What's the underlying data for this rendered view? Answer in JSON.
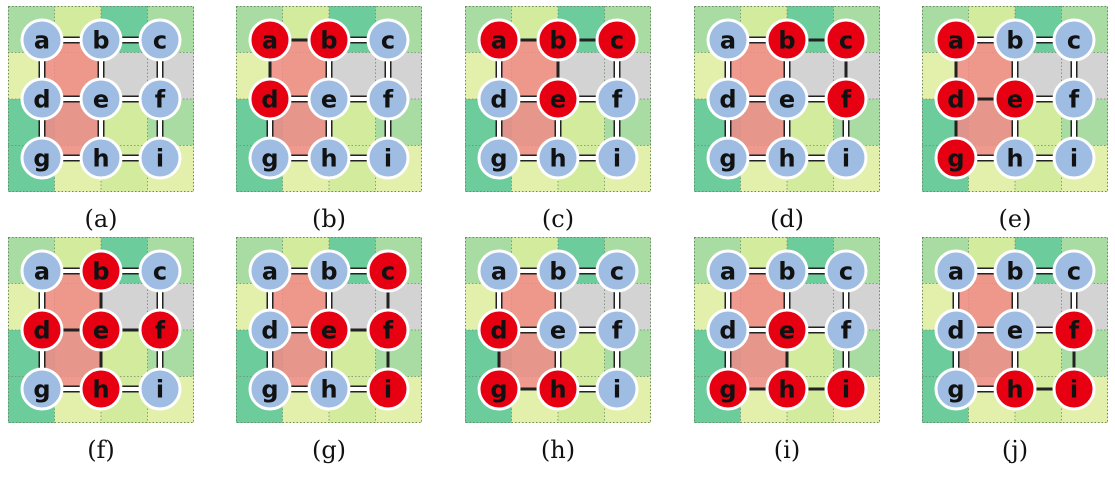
{
  "colors": {
    "node_default": "#9fbde3",
    "node_active": "#e60012",
    "node_stroke": "#ffffff",
    "label_color": "#111111",
    "edge_single": "#222222",
    "edge_double_fill": "#ffffff",
    "edge_double_stroke": "#222222",
    "highlight": "#f28a88",
    "cell_colors": {
      "dark_green": "#6ccc9c",
      "green": "#a8dca2",
      "light_green": "#d2eb9d",
      "pale_green": "#e2f0ab",
      "gray": "#d3d3d3"
    }
  },
  "grid": {
    "nodes": [
      "a",
      "b",
      "c",
      "d",
      "e",
      "f",
      "g",
      "h",
      "i"
    ],
    "cell_pattern": [
      [
        "green",
        "light_green",
        "dark_green",
        "green"
      ],
      [
        "pale_green",
        "light_green",
        "gray",
        "gray"
      ],
      [
        "dark_green",
        "green",
        "light_green",
        "green"
      ],
      [
        "dark_green",
        "pale_green",
        "light_green",
        "pale_green"
      ]
    ],
    "edges": [
      [
        "a",
        "b"
      ],
      [
        "b",
        "c"
      ],
      [
        "d",
        "e"
      ],
      [
        "e",
        "f"
      ],
      [
        "g",
        "h"
      ],
      [
        "h",
        "i"
      ],
      [
        "a",
        "d"
      ],
      [
        "d",
        "g"
      ],
      [
        "b",
        "e"
      ],
      [
        "e",
        "h"
      ],
      [
        "c",
        "f"
      ],
      [
        "f",
        "i"
      ]
    ]
  },
  "panels": [
    {
      "id": "a",
      "caption": "(a)",
      "active": []
    },
    {
      "id": "b",
      "caption": "(b)",
      "active": [
        "a",
        "b",
        "d"
      ]
    },
    {
      "id": "c",
      "caption": "(c)",
      "active": [
        "a",
        "b",
        "c",
        "e"
      ]
    },
    {
      "id": "d",
      "caption": "(d)",
      "active": [
        "b",
        "c",
        "f"
      ]
    },
    {
      "id": "e",
      "caption": "(e)",
      "active": [
        "a",
        "d",
        "e",
        "g"
      ]
    },
    {
      "id": "f",
      "caption": "(f)",
      "active": [
        "b",
        "d",
        "e",
        "f",
        "h"
      ]
    },
    {
      "id": "g",
      "caption": "(g)",
      "active": [
        "c",
        "e",
        "f",
        "i"
      ]
    },
    {
      "id": "h",
      "caption": "(h)",
      "active": [
        "d",
        "g",
        "h"
      ]
    },
    {
      "id": "i",
      "caption": "(i)",
      "active": [
        "e",
        "g",
        "h",
        "i"
      ]
    },
    {
      "id": "j",
      "caption": "(j)",
      "active": [
        "f",
        "h",
        "i"
      ]
    }
  ]
}
